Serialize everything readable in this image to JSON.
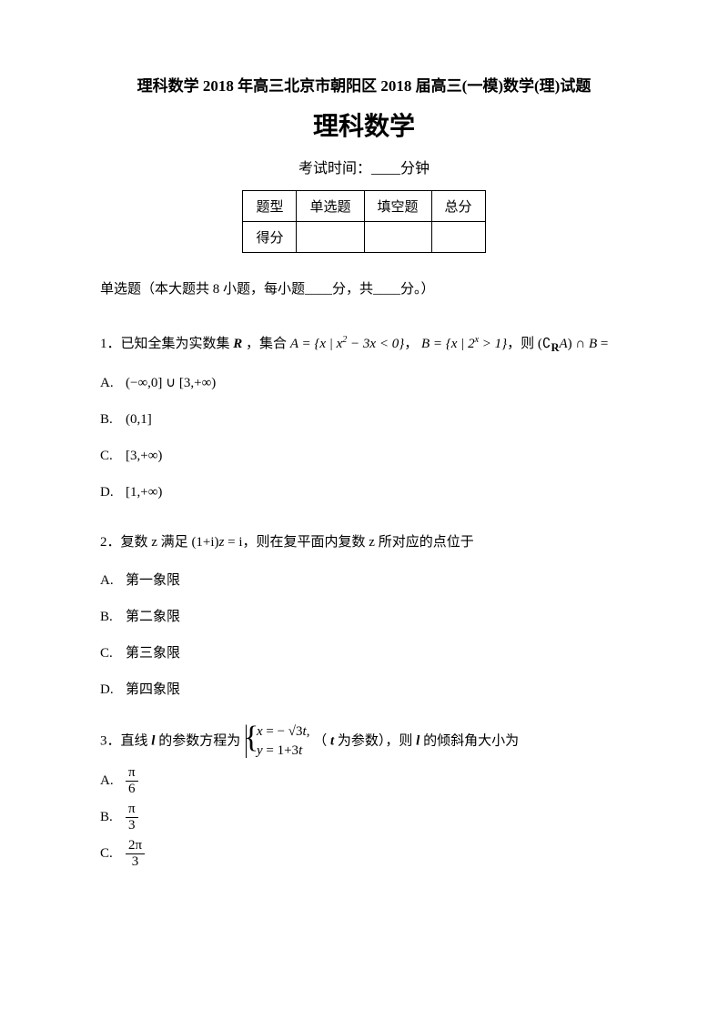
{
  "header": {
    "title_line": "理科数学 2018 年高三北京市朝阳区 2018 届高三(一模)数学(理)试题",
    "main_title": "理科数学",
    "exam_time_prefix": "考试时间：",
    "exam_time_suffix": "分钟"
  },
  "score_table": {
    "row1": [
      "题型",
      "单选题",
      "填空题",
      "总分"
    ],
    "row2_label": "得分"
  },
  "section": "单选题（本大题共 8 小题，每小题____分，共____分。）",
  "q1": {
    "num": "1．",
    "prefix": "已知全集为实数集 ",
    "R": "R",
    "text2": " ，集合 ",
    "setA": "A = {x | x² − 3x < 0}",
    "comma1": "，",
    "setB": "B = {x | 2ˣ > 1}",
    "text3": "，则 ",
    "expr": "(∁",
    "exprR": "R",
    "expr2": "A) ∩ B =",
    "optA": "(−∞,0] ∪ [3,+∞)",
    "optB": "(0,1]",
    "optC": "[3,+∞)",
    "optD": "[1,+∞)"
  },
  "q2": {
    "num": "2．",
    "prefix": "复数 z 满足 ",
    "eq": "(1+i)z = i",
    "suffix": "，则在复平面内复数 z 所对应的点位于",
    "optA": "第一象限",
    "optB": "第二象限",
    "optC": "第三象限",
    "optD": "第四象限"
  },
  "q3": {
    "num": "3．",
    "prefix": "直线 ",
    "l": "l",
    "text2": " 的参数方程为 ",
    "line1a": "x = − ",
    "line1b": "√3",
    "line1c": "t,",
    "line2": "y = 1+3t",
    "text3": "（ ",
    "t": "t",
    "text4": " 为参数），则 ",
    "l2": "l",
    "text5": " 的倾斜角大小为",
    "optA_num": "π",
    "optA_den": "6",
    "optB_num": "π",
    "optB_den": "3",
    "optC_num": "2π",
    "optC_den": "3"
  },
  "labels": {
    "A": "A.",
    "B": "B.",
    "C": "C.",
    "D": "D."
  }
}
